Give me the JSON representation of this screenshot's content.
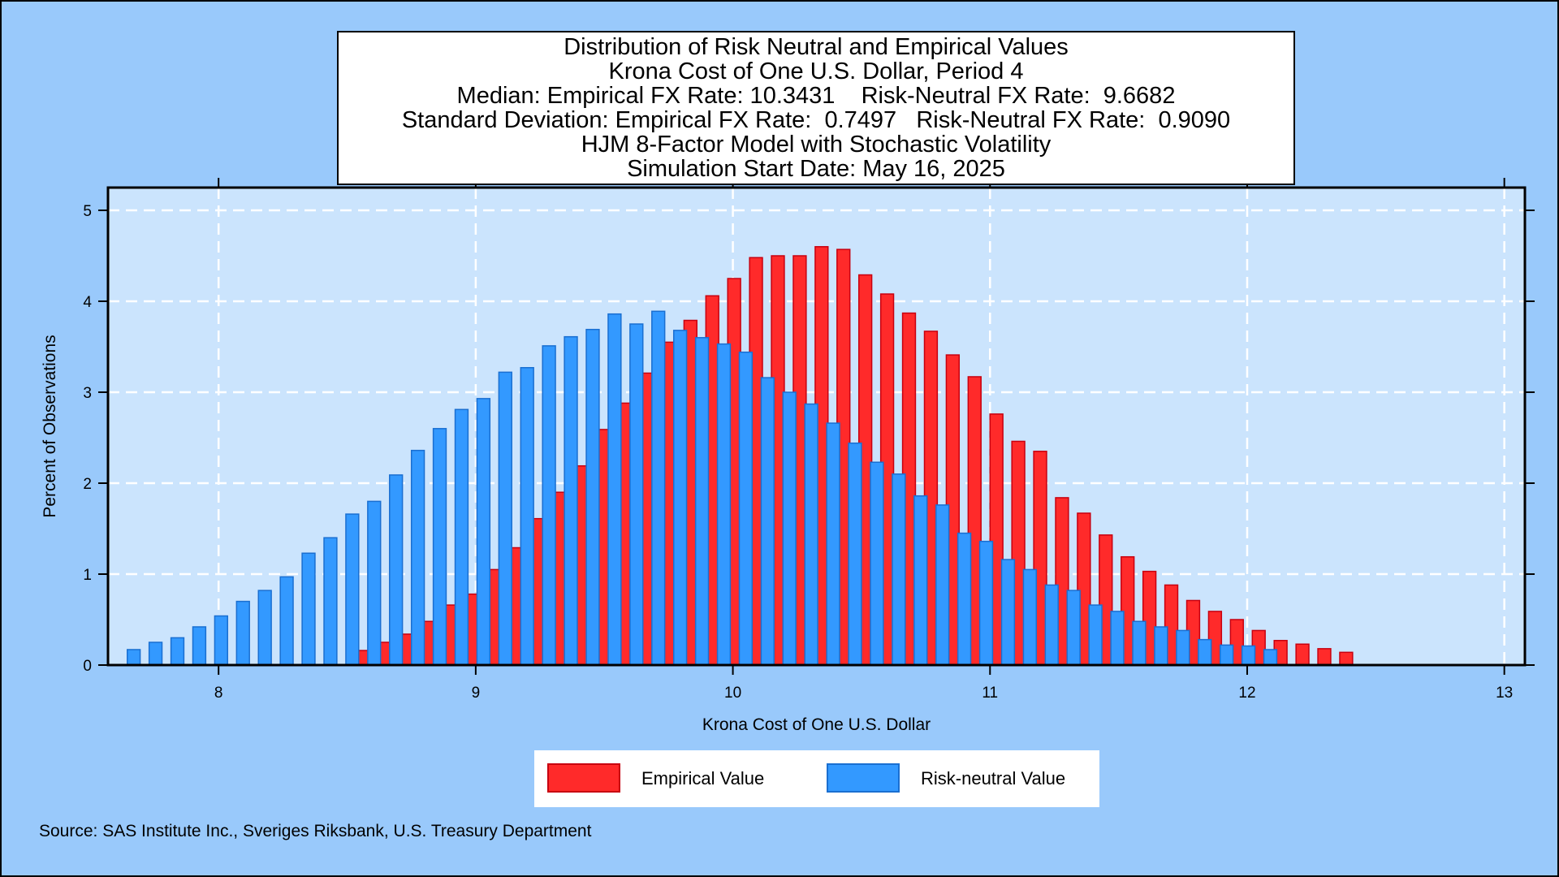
{
  "chart_data": {
    "type": "bar",
    "title_lines": [
      "Distribution of Risk Neutral and Empirical Values",
      "Krona Cost of One U.S. Dollar, Period 4",
      "Median: Empirical FX Rate: 10.3431    Risk-Neutral FX Rate:  9.6682",
      "Standard Deviation: Empirical FX Rate:  0.7497   Risk-Neutral FX Rate:  0.9090",
      "HJM 8-Factor Model with Stochastic Volatility",
      "Simulation Start Date: May 16, 2025"
    ],
    "xlabel": "Krona Cost of One U.S. Dollar",
    "ylabel": "Percent of Observations",
    "xlim": [
      7.57,
      13.08
    ],
    "ylim": [
      0,
      5.25
    ],
    "xticks": [
      "8",
      "9",
      "10",
      "11",
      "12",
      "13"
    ],
    "yticks": [
      "0",
      "1",
      "2",
      "3",
      "4",
      "5"
    ],
    "grid": true,
    "legend_position": "bottom-center",
    "series": [
      {
        "name": "Empirical Value",
        "color": "#ff2a2a",
        "border": "#c8000f",
        "x": [
          8.56,
          8.645,
          8.73,
          8.815,
          8.9,
          8.985,
          9.07,
          9.155,
          9.24,
          9.325,
          9.41,
          9.495,
          9.58,
          9.665,
          9.75,
          9.835,
          9.92,
          10.005,
          10.09,
          10.175,
          10.26,
          10.345,
          10.43,
          10.515,
          10.6,
          10.685,
          10.77,
          10.855,
          10.94,
          11.025,
          11.11,
          11.195,
          11.28,
          11.365,
          11.45,
          11.535,
          11.62,
          11.705,
          11.79,
          11.875,
          11.96,
          12.045,
          12.13,
          12.215,
          12.3,
          12.385
        ],
        "values": [
          0.16,
          0.25,
          0.34,
          0.48,
          0.66,
          0.78,
          1.05,
          1.29,
          1.61,
          1.9,
          2.19,
          2.59,
          2.88,
          3.21,
          3.55,
          3.79,
          4.06,
          4.25,
          4.48,
          4.5,
          4.5,
          4.6,
          4.57,
          4.29,
          4.08,
          3.87,
          3.67,
          3.41,
          3.17,
          2.76,
          2.46,
          2.35,
          1.84,
          1.67,
          1.43,
          1.19,
          1.03,
          0.88,
          0.71,
          0.59,
          0.5,
          0.38,
          0.27,
          0.23,
          0.18,
          0.14
        ]
      },
      {
        "name": "Risk-neutral Value",
        "color": "#3399ff",
        "border": "#1a6fd1",
        "x": [
          7.67,
          7.755,
          7.84,
          7.925,
          8.01,
          8.095,
          8.18,
          8.265,
          8.35,
          8.435,
          8.52,
          8.605,
          8.69,
          8.775,
          8.86,
          8.945,
          9.03,
          9.115,
          9.2,
          9.285,
          9.37,
          9.455,
          9.54,
          9.625,
          9.71,
          9.795,
          9.88,
          9.965,
          10.05,
          10.135,
          10.22,
          10.305,
          10.39,
          10.475,
          10.56,
          10.645,
          10.73,
          10.815,
          10.9,
          10.985,
          11.07,
          11.155,
          11.24,
          11.325,
          11.41,
          11.495,
          11.58,
          11.665,
          11.75,
          11.835,
          11.92,
          12.005,
          12.09
        ],
        "values": [
          0.17,
          0.25,
          0.3,
          0.42,
          0.54,
          0.7,
          0.82,
          0.97,
          1.23,
          1.4,
          1.66,
          1.8,
          2.09,
          2.36,
          2.6,
          2.81,
          2.93,
          3.22,
          3.27,
          3.51,
          3.61,
          3.69,
          3.86,
          3.75,
          3.89,
          3.68,
          3.6,
          3.53,
          3.44,
          3.16,
          3.0,
          2.87,
          2.66,
          2.44,
          2.23,
          2.1,
          1.86,
          1.76,
          1.45,
          1.36,
          1.16,
          1.05,
          0.88,
          0.82,
          0.66,
          0.59,
          0.48,
          0.42,
          0.38,
          0.28,
          0.22,
          0.21,
          0.17
        ]
      }
    ]
  },
  "legend": {
    "empirical_label": "Empirical Value",
    "risk_neutral_label": "Risk-neutral Value"
  },
  "footer": {
    "source": "Source: SAS Institute Inc., Sveriges Riksbank, U.S. Treasury Department"
  }
}
